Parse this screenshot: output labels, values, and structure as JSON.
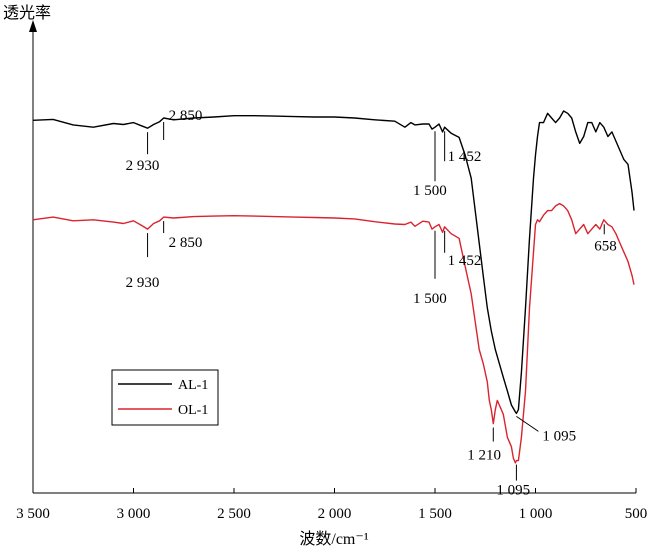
{
  "chart_data": {
    "type": "line",
    "ylabel": "透光率",
    "xlabel": "波数/cm⁻¹",
    "x_reversed": true,
    "xlim": [
      3500,
      500
    ],
    "x_ticks": [
      3500,
      3000,
      2500,
      2000,
      1500,
      1000,
      500
    ],
    "x_tick_labels": [
      "3 500",
      "3 000",
      "2 500",
      "2 000",
      "1 500",
      "1 000",
      "500"
    ],
    "y_relative_units": "relative transmittance, arbitrary (0 = bottom of frame, 1 = top of frame, no printed y ticks)",
    "legend": {
      "placement": "lower-left"
    },
    "series": [
      {
        "name": "AL-1",
        "color": "#000000",
        "x": [
          3500,
          3400,
          3300,
          3200,
          3100,
          3050,
          3000,
          2960,
          2930,
          2900,
          2870,
          2850,
          2800,
          2700,
          2600,
          2500,
          2400,
          2300,
          2200,
          2100,
          2000,
          1900,
          1800,
          1700,
          1650,
          1620,
          1600,
          1560,
          1530,
          1515,
          1500,
          1480,
          1462,
          1452,
          1420,
          1380,
          1350,
          1320,
          1300,
          1280,
          1260,
          1240,
          1220,
          1200,
          1180,
          1160,
          1140,
          1120,
          1100,
          1095,
          1085,
          1070,
          1050,
          1030,
          1010,
          1000,
          990,
          980,
          960,
          940,
          920,
          900,
          880,
          860,
          840,
          820,
          800,
          780,
          760,
          740,
          720,
          700,
          680,
          660,
          640,
          620,
          600,
          580,
          560,
          540,
          520,
          510
        ],
        "y": [
          0.805,
          0.807,
          0.795,
          0.79,
          0.798,
          0.796,
          0.8,
          0.793,
          0.788,
          0.796,
          0.802,
          0.81,
          0.806,
          0.81,
          0.812,
          0.815,
          0.815,
          0.814,
          0.813,
          0.812,
          0.812,
          0.81,
          0.806,
          0.803,
          0.79,
          0.8,
          0.795,
          0.797,
          0.797,
          0.786,
          0.79,
          0.797,
          0.78,
          0.79,
          0.777,
          0.768,
          0.73,
          0.68,
          0.61,
          0.54,
          0.47,
          0.4,
          0.35,
          0.31,
          0.28,
          0.25,
          0.22,
          0.19,
          0.175,
          0.172,
          0.18,
          0.26,
          0.4,
          0.55,
          0.68,
          0.73,
          0.77,
          0.8,
          0.8,
          0.82,
          0.81,
          0.8,
          0.81,
          0.825,
          0.82,
          0.81,
          0.78,
          0.755,
          0.77,
          0.8,
          0.8,
          0.78,
          0.8,
          0.79,
          0.77,
          0.78,
          0.76,
          0.74,
          0.72,
          0.71,
          0.65,
          0.61
        ]
      },
      {
        "name": "OL-1",
        "color": "#d9242f",
        "x": [
          3500,
          3400,
          3300,
          3200,
          3100,
          3050,
          3000,
          2960,
          2930,
          2900,
          2870,
          2850,
          2800,
          2700,
          2600,
          2500,
          2400,
          2300,
          2200,
          2100,
          2000,
          1900,
          1800,
          1700,
          1650,
          1620,
          1600,
          1560,
          1530,
          1515,
          1500,
          1480,
          1462,
          1452,
          1420,
          1380,
          1350,
          1320,
          1300,
          1280,
          1260,
          1240,
          1230,
          1220,
          1210,
          1200,
          1190,
          1180,
          1160,
          1140,
          1120,
          1110,
          1100,
          1095,
          1085,
          1070,
          1050,
          1040,
          1030,
          1020,
          1010,
          1000,
          990,
          980,
          960,
          940,
          920,
          900,
          880,
          860,
          840,
          820,
          800,
          780,
          760,
          740,
          720,
          700,
          680,
          660,
          640,
          620,
          600,
          580,
          560,
          540,
          520,
          510
        ],
        "y": [
          0.59,
          0.596,
          0.588,
          0.59,
          0.585,
          0.582,
          0.588,
          0.578,
          0.57,
          0.582,
          0.588,
          0.596,
          0.594,
          0.597,
          0.598,
          0.599,
          0.598,
          0.597,
          0.596,
          0.595,
          0.594,
          0.592,
          0.586,
          0.581,
          0.58,
          0.585,
          0.576,
          0.587,
          0.585,
          0.57,
          0.575,
          0.58,
          0.563,
          0.575,
          0.56,
          0.55,
          0.49,
          0.43,
          0.37,
          0.31,
          0.28,
          0.24,
          0.2,
          0.18,
          0.15,
          0.18,
          0.2,
          0.19,
          0.17,
          0.12,
          0.1,
          0.075,
          0.065,
          0.07,
          0.07,
          0.12,
          0.22,
          0.31,
          0.4,
          0.46,
          0.52,
          0.58,
          0.59,
          0.586,
          0.6,
          0.61,
          0.61,
          0.62,
          0.625,
          0.62,
          0.61,
          0.59,
          0.56,
          0.57,
          0.58,
          0.56,
          0.57,
          0.58,
          0.57,
          0.59,
          0.58,
          0.575,
          0.56,
          0.54,
          0.52,
          0.5,
          0.47,
          0.45
        ]
      }
    ],
    "annotations": [
      {
        "text": "2 850",
        "series": "AL-1",
        "x": 2850
      },
      {
        "text": "2 930",
        "series": "AL-1",
        "x": 2930
      },
      {
        "text": "1 452",
        "series": "AL-1",
        "x": 1452
      },
      {
        "text": "1 500",
        "series": "AL-1",
        "x": 1500
      },
      {
        "text": "1 095",
        "series": "AL-1",
        "x": 1095
      },
      {
        "text": "2 850",
        "series": "OL-1",
        "x": 2850
      },
      {
        "text": "2 930",
        "series": "OL-1",
        "x": 2930
      },
      {
        "text": "1 452",
        "series": "OL-1",
        "x": 1452
      },
      {
        "text": "1 500",
        "series": "OL-1",
        "x": 1500
      },
      {
        "text": "1 210",
        "series": "OL-1",
        "x": 1210
      },
      {
        "text": "1 095",
        "series": "OL-1",
        "x": 1095
      },
      {
        "text": "658",
        "series": "OL-1",
        "x": 658
      }
    ]
  }
}
